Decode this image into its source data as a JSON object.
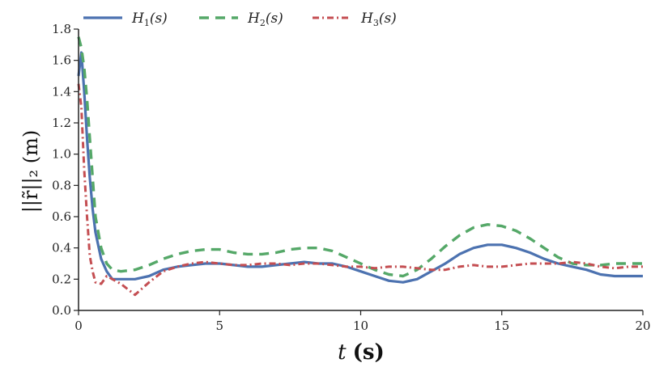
{
  "chart_data": {
    "type": "line",
    "title": "",
    "xlabel": "t (s)",
    "ylabel": "||r̃||₂ (m)",
    "xlim": [
      0,
      20
    ],
    "ylim": [
      0,
      1.8
    ],
    "xticks": [
      0,
      5,
      10,
      15,
      20
    ],
    "yticks": [
      0.0,
      0.2,
      0.4,
      0.6,
      0.8,
      1.0,
      1.2,
      1.4,
      1.6,
      1.8
    ],
    "ytick_labels": [
      "0.0",
      "0.2",
      "0.4",
      "0.6",
      "0.8",
      "1.0",
      "1.2",
      "1.4",
      "1.6",
      "1.8"
    ],
    "grid": false,
    "legend": "top-left, horizontal",
    "series": [
      {
        "name": "H1(s)",
        "label_main": "H",
        "label_sub": "1",
        "label_arg": "(s)",
        "color": "#4c72b0",
        "style": "solid",
        "x": [
          0,
          0.1,
          0.2,
          0.3,
          0.4,
          0.5,
          0.6,
          0.8,
          1.0,
          1.2,
          1.5,
          2.0,
          2.5,
          3.0,
          3.5,
          4.0,
          4.5,
          5.0,
          5.5,
          6.0,
          6.5,
          7.0,
          7.5,
          8.0,
          8.5,
          9.0,
          9.5,
          10.0,
          10.5,
          11.0,
          11.5,
          12.0,
          12.5,
          13.0,
          13.5,
          14.0,
          14.5,
          15.0,
          15.5,
          16.0,
          16.5,
          17.0,
          17.5,
          18.0,
          18.5,
          19.0,
          19.5,
          20.0
        ],
        "y": [
          1.5,
          1.65,
          1.4,
          1.1,
          0.85,
          0.65,
          0.5,
          0.33,
          0.25,
          0.2,
          0.2,
          0.2,
          0.22,
          0.26,
          0.28,
          0.29,
          0.3,
          0.3,
          0.29,
          0.28,
          0.28,
          0.29,
          0.3,
          0.31,
          0.3,
          0.3,
          0.28,
          0.25,
          0.22,
          0.19,
          0.18,
          0.2,
          0.25,
          0.3,
          0.36,
          0.4,
          0.42,
          0.42,
          0.4,
          0.37,
          0.33,
          0.3,
          0.28,
          0.26,
          0.23,
          0.22,
          0.22,
          0.22
        ]
      },
      {
        "name": "H2(s)",
        "label_main": "H",
        "label_sub": "2",
        "label_arg": "(s)",
        "color": "#55a868",
        "style": "dashed",
        "x": [
          0,
          0.1,
          0.2,
          0.3,
          0.4,
          0.5,
          0.6,
          0.8,
          1.0,
          1.2,
          1.5,
          2.0,
          2.5,
          3.0,
          3.5,
          4.0,
          4.5,
          5.0,
          5.5,
          6.0,
          6.5,
          7.0,
          7.5,
          8.0,
          8.5,
          9.0,
          9.5,
          10.0,
          10.5,
          11.0,
          11.5,
          12.0,
          12.5,
          13.0,
          13.5,
          14.0,
          14.5,
          15.0,
          15.5,
          16.0,
          16.5,
          17.0,
          17.5,
          18.0,
          18.5,
          19.0,
          19.5,
          20.0
        ],
        "y": [
          1.75,
          1.68,
          1.55,
          1.35,
          1.1,
          0.85,
          0.6,
          0.4,
          0.3,
          0.26,
          0.25,
          0.26,
          0.29,
          0.33,
          0.36,
          0.38,
          0.39,
          0.39,
          0.37,
          0.36,
          0.36,
          0.37,
          0.39,
          0.4,
          0.4,
          0.38,
          0.34,
          0.3,
          0.26,
          0.23,
          0.22,
          0.26,
          0.33,
          0.41,
          0.48,
          0.53,
          0.55,
          0.54,
          0.51,
          0.46,
          0.4,
          0.34,
          0.3,
          0.29,
          0.29,
          0.3,
          0.3,
          0.3
        ]
      },
      {
        "name": "H3(s)",
        "label_main": "H",
        "label_sub": "3",
        "label_arg": "(s)",
        "color": "#c44e52",
        "style": "dashdot",
        "x": [
          0,
          0.1,
          0.2,
          0.3,
          0.4,
          0.5,
          0.6,
          0.8,
          1.0,
          1.2,
          1.5,
          2.0,
          2.5,
          3.0,
          3.5,
          4.0,
          4.5,
          5.0,
          5.5,
          6.0,
          6.5,
          7.0,
          7.5,
          8.0,
          8.5,
          9.0,
          9.5,
          10.0,
          10.5,
          11.0,
          11.5,
          12.0,
          12.5,
          13.0,
          13.5,
          14.0,
          14.5,
          15.0,
          15.5,
          16.0,
          16.5,
          17.0,
          17.5,
          18.0,
          18.5,
          19.0,
          19.5,
          20.0
        ],
        "y": [
          1.45,
          1.3,
          0.9,
          0.6,
          0.35,
          0.25,
          0.18,
          0.17,
          0.22,
          0.2,
          0.17,
          0.1,
          0.18,
          0.25,
          0.28,
          0.3,
          0.31,
          0.3,
          0.29,
          0.29,
          0.3,
          0.3,
          0.29,
          0.3,
          0.3,
          0.29,
          0.28,
          0.28,
          0.27,
          0.28,
          0.28,
          0.27,
          0.26,
          0.26,
          0.28,
          0.29,
          0.28,
          0.28,
          0.29,
          0.3,
          0.3,
          0.3,
          0.31,
          0.3,
          0.28,
          0.27,
          0.28,
          0.28
        ]
      }
    ]
  }
}
